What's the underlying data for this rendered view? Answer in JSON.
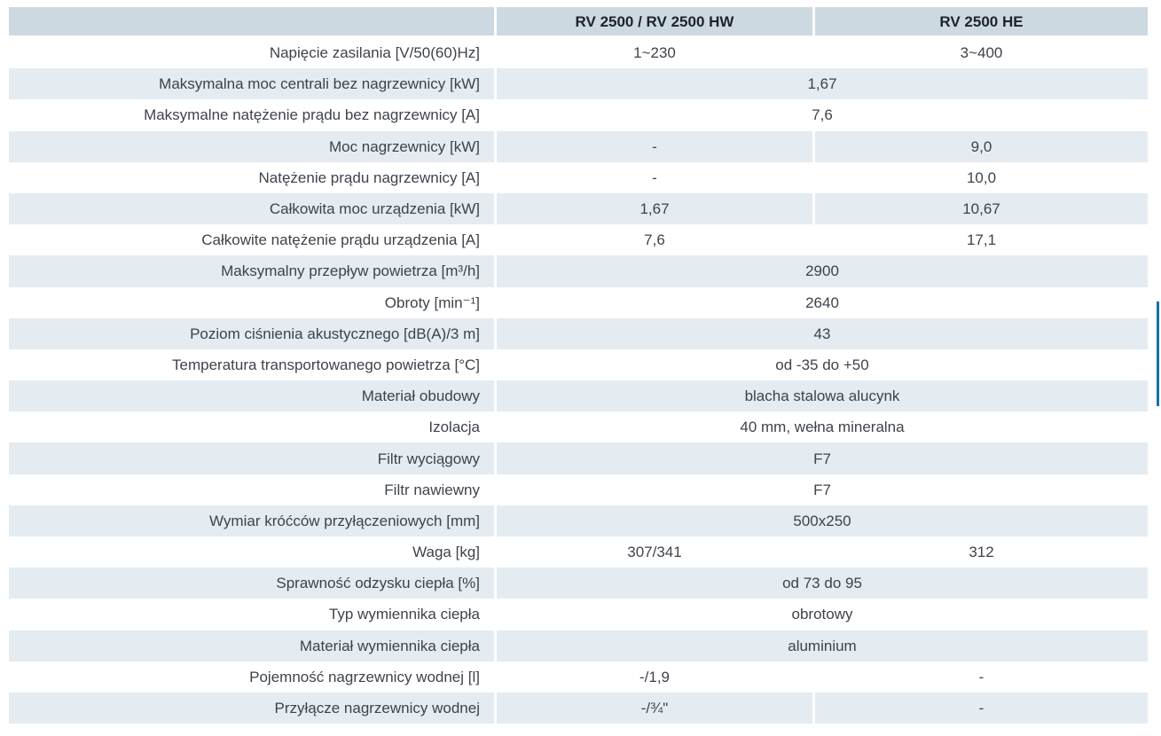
{
  "colors": {
    "header_bg": "#cdd9e1",
    "row_alt_bg": "#e4ebf1",
    "body_text": "#3e434b",
    "header_text": "#1e222a",
    "edge_bar": "#1472a5"
  },
  "table": {
    "header": {
      "col_label": "",
      "col1": "RV 2500 / RV 2500 HW",
      "col2": "RV 2500 HE"
    },
    "rows": [
      {
        "label": "Napięcie zasilania [V/50(60)Hz]",
        "values": [
          "1~230",
          "3~400"
        ]
      },
      {
        "label": "Maksymalna moc centrali bez nagrzewnicy [kW]",
        "span": "1,67"
      },
      {
        "label": "Maksymalne natężenie prądu bez nagrzewnicy [A]",
        "span": "7,6"
      },
      {
        "label": "Moc nagrzewnicy [kW]",
        "values": [
          "-",
          "9,0"
        ]
      },
      {
        "label": "Natężenie prądu nagrzewnicy [A]",
        "values": [
          "-",
          "10,0"
        ]
      },
      {
        "label": "Całkowita moc urządzenia [kW]",
        "values": [
          "1,67",
          "10,67"
        ]
      },
      {
        "label": "Całkowite natężenie prądu urządzenia [A]",
        "values": [
          "7,6",
          "17,1"
        ]
      },
      {
        "label": "Maksymalny przepływ powietrza [m³/h]",
        "span": "2900"
      },
      {
        "label": "Obroty [min⁻¹]",
        "span": "2640"
      },
      {
        "label": "Poziom ciśnienia akustycznego [dB(A)/3 m]",
        "span": "43"
      },
      {
        "label": "Temperatura transportowanego powietrza [°C]",
        "span": "od -35 do +50"
      },
      {
        "label": "Materiał obudowy",
        "span": "blacha stalowa alucynk"
      },
      {
        "label": "Izolacja",
        "span": "40 mm, wełna mineralna"
      },
      {
        "label": "Filtr wyciągowy",
        "span": "F7"
      },
      {
        "label": "Filtr nawiewny",
        "span": "F7"
      },
      {
        "label": "Wymiar króćców przyłączeniowych [mm]",
        "span": "500x250"
      },
      {
        "label": "Waga [kg]",
        "values": [
          "307/341",
          "312"
        ]
      },
      {
        "label": "Sprawność odzysku ciepła [%]",
        "span": "od 73 do 95"
      },
      {
        "label": "Typ wymiennika ciepła",
        "span": "obrotowy"
      },
      {
        "label": "Materiał wymiennika ciepła",
        "span": "aluminium"
      },
      {
        "label": "Pojemność nagrzewnicy wodnej [l]",
        "values": [
          "-/1,9",
          "-"
        ]
      },
      {
        "label": "Przyłącze nagrzewnicy wodnej",
        "values": [
          "-/¾\"",
          "-"
        ]
      }
    ]
  }
}
